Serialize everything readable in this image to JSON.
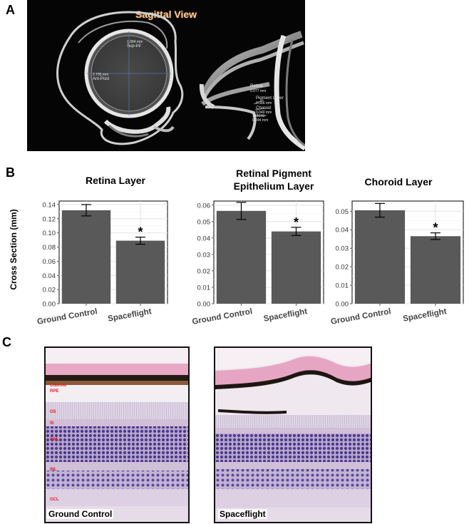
{
  "panels": {
    "a": {
      "letter": "A",
      "title": "Sagittal View",
      "labels": {
        "sup_inf_val": "1.084 mm",
        "sup_inf": "Sup-Inf",
        "ant_post_val": "2.765 mm",
        "ant_post": "Ant-Post",
        "retina": "Retina",
        "retina_val": "0.077 mm",
        "pigment": "Pigment Layer",
        "pigment_val": "0.086 mm",
        "choroid": "Choroid",
        "choroid_val": "0.040 mm",
        "sclera": "Sclera",
        "sclera_val": "0.044 mm"
      }
    },
    "b": {
      "letter": "B"
    },
    "c": {
      "letter": "C",
      "left_label": "Ground Control",
      "right_label": "Spaceflight",
      "layer_tags": [
        "Choroid",
        "RPE",
        "OS",
        "IS",
        "ONL",
        "INL",
        "GCL"
      ]
    }
  },
  "shared": {
    "ylabel": "Cross Section (mm)",
    "sig_marker": "*"
  },
  "chart_data": [
    {
      "type": "bar",
      "title": "Retina Layer",
      "categories": [
        "Ground Control",
        "Spaceflight"
      ],
      "values": [
        0.132,
        0.089
      ],
      "errors": [
        0.008,
        0.005
      ],
      "significant": [
        false,
        true
      ],
      "ylim": [
        0,
        0.145
      ],
      "yticks": [
        0.0,
        0.02,
        0.04,
        0.06,
        0.08,
        0.1,
        0.12,
        0.14
      ],
      "ytick_labels": [
        "0.00",
        "0.02",
        "0.04",
        "0.06",
        "0.08",
        "0.10",
        "0.12",
        "0.14"
      ],
      "ylabel": "Cross Section (mm)",
      "color": "#595959",
      "grid": true
    },
    {
      "type": "bar",
      "title": "Retinal Pigment Epithelium Layer",
      "title_lines": [
        "Retinal Pigment",
        "Epithelium Layer"
      ],
      "categories": [
        "Ground Control",
        "Spaceflight"
      ],
      "values": [
        0.0565,
        0.044
      ],
      "errors": [
        0.0052,
        0.0025
      ],
      "significant": [
        false,
        true
      ],
      "ylim": [
        0,
        0.0625
      ],
      "yticks": [
        0.0,
        0.01,
        0.02,
        0.03,
        0.04,
        0.05,
        0.06
      ],
      "ytick_labels": [
        "0.00",
        "0.01",
        "0.02",
        "0.03",
        "0.04",
        "0.05",
        "0.06"
      ],
      "color": "#595959",
      "grid": true
    },
    {
      "type": "bar",
      "title": "Choroid Layer",
      "categories": [
        "Ground Control",
        "Spaceflight"
      ],
      "values": [
        0.0505,
        0.0365
      ],
      "errors": [
        0.0037,
        0.0018
      ],
      "significant": [
        false,
        true
      ],
      "ylim": [
        0,
        0.0555
      ],
      "yticks": [
        0.0,
        0.01,
        0.02,
        0.03,
        0.04,
        0.05
      ],
      "ytick_labels": [
        "0.00",
        "0.01",
        "0.02",
        "0.03",
        "0.04",
        "0.05"
      ],
      "color": "#595959",
      "grid": true
    }
  ]
}
